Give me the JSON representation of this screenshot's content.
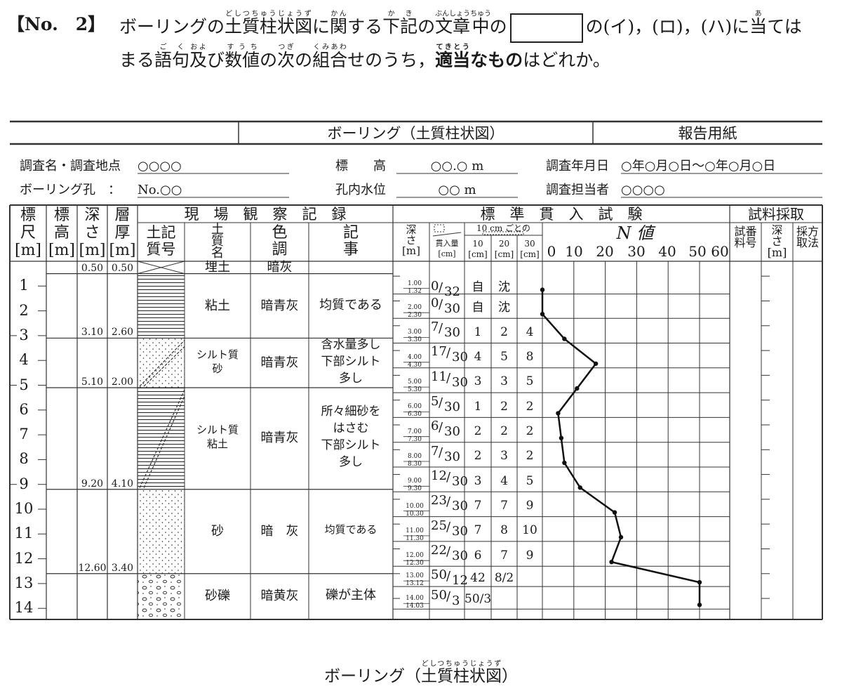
{
  "question": {
    "number": "【No.　2】",
    "line1": [
      {
        "t": "ボーリングの"
      },
      {
        "t": "土質柱状図",
        "r": "どしつちゅうじょうず"
      },
      {
        "t": "に"
      },
      {
        "t": "関",
        "r": "かん"
      },
      {
        "t": "する"
      },
      {
        "t": "下記",
        "r": "かき"
      },
      {
        "t": "の"
      },
      {
        "t": "文章",
        "r": "ぶんしょう"
      },
      {
        "t": "中",
        "r": "ちゅう"
      },
      {
        "t": "の"
      },
      {
        "box": true
      },
      {
        "t": "の(イ)，(ロ)，(ハ)に"
      },
      {
        "t": "当",
        "r": "あ"
      },
      {
        "t": "ては"
      }
    ],
    "line2": [
      {
        "t": "まる"
      },
      {
        "t": "語句",
        "r": "ごく"
      },
      {
        "t": "及",
        "r": "およ"
      },
      {
        "t": "び"
      },
      {
        "t": "数値",
        "r": "すうち"
      },
      {
        "t": "の"
      },
      {
        "t": "次",
        "r": "つぎ"
      },
      {
        "t": "の"
      },
      {
        "t": "組合",
        "r": "くみあわ"
      },
      {
        "t": "せのうち，"
      },
      {
        "t": "適当",
        "r": "てきとう",
        "b": true
      },
      {
        "t": "なもの",
        "b": true
      },
      {
        "t": "はどれか。"
      }
    ]
  },
  "form": {
    "title": "ボーリング（土質柱状図）",
    "report": "報告用紙",
    "info": {
      "survey_label": "調査名・調査地点",
      "survey_value": "○○○○",
      "hole_label": "ボーリング孔　：",
      "hole_value": "No.○○",
      "elev_label": "標　　高",
      "elev_value": "○○.○ m",
      "water_label": "孔内水位",
      "water_value": "○○ m",
      "date_label": "調査年月日",
      "date_value": "○年○月○日～○年○月○日",
      "staff_label": "調査担当者",
      "staff_value": "○○○○"
    },
    "headers": {
      "scale": [
        "標",
        "尺",
        "[m]"
      ],
      "elevation": [
        "標",
        "高",
        "[m]"
      ],
      "depth": [
        "深",
        "さ",
        "[m]"
      ],
      "thickness": [
        "層",
        "厚",
        "[m]"
      ],
      "field_group": "現　場　観　察　記　録",
      "symbol": [
        "土記",
        "質号"
      ],
      "soil_name": [
        "土",
        "質",
        "名"
      ],
      "color": [
        "色",
        "調"
      ],
      "notes": [
        "記",
        "事"
      ],
      "spt_group": "標　準　貫　入　試　験",
      "spt_depth": [
        "深",
        "さ",
        "[m]"
      ],
      "penetration": [
        "貫入量",
        "[cm]"
      ],
      "per10": "10 cm ごとの",
      "per10_cols": [
        [
          "10",
          "[cm]"
        ],
        [
          "20",
          "[cm]"
        ],
        [
          "30",
          "[cm]"
        ]
      ],
      "n_value": "N 値",
      "n_ticks": [
        "0",
        "10",
        "20",
        "30",
        "40",
        "50",
        "60"
      ],
      "sample_group": "試料採取",
      "sample_no": [
        "試番",
        "料号"
      ],
      "sample_depth": [
        "深",
        "さ",
        "[m]"
      ],
      "sample_method": [
        "採方",
        "取法"
      ]
    },
    "scale_marks": [
      "1",
      "2",
      "3",
      "4",
      "5",
      "6",
      "7",
      "8",
      "9",
      "10",
      "11",
      "12",
      "13",
      "14"
    ],
    "layers": [
      {
        "top": 0,
        "bottom": 0.5,
        "depth": "0.50",
        "thickness": "0.50",
        "name": [
          "埋土"
        ],
        "color": "暗灰",
        "note": [],
        "pattern": "fill"
      },
      {
        "top": 0.5,
        "bottom": 3.1,
        "depth": "3.10",
        "thickness": "2.60",
        "name": [
          "粘土"
        ],
        "color": "暗青灰",
        "note": [
          "均質である"
        ],
        "pattern": "clay"
      },
      {
        "top": 3.1,
        "bottom": 5.1,
        "depth": "5.10",
        "thickness": "2.00",
        "name": [
          "シルト質",
          "砂"
        ],
        "color": "暗青灰",
        "note": [
          "含水量多し",
          "下部シルト",
          "多し"
        ],
        "pattern": "silty-sand"
      },
      {
        "top": 5.1,
        "bottom": 9.2,
        "depth": "9.20",
        "thickness": "4.10",
        "name": [
          "シルト質",
          "粘土"
        ],
        "color": "暗青灰",
        "note": [
          "所々細砂を",
          "はさむ",
          "下部シルト",
          "多し"
        ],
        "pattern": "silty-clay"
      },
      {
        "top": 9.2,
        "bottom": 12.6,
        "depth": "12.60",
        "thickness": "3.40",
        "name": [
          "砂"
        ],
        "color": "暗　灰",
        "note": [
          "均質である"
        ],
        "pattern": "sand"
      },
      {
        "top": 12.6,
        "bottom": 14.5,
        "depth": "",
        "thickness": "",
        "name": [
          "砂礫"
        ],
        "color": "暗黄灰",
        "note": [
          "礫が主体"
        ],
        "pattern": "gravel"
      }
    ],
    "spt": [
      {
        "start": "1.00",
        "end": "1.32",
        "blows": "0",
        "pen": "32",
        "b10": "自",
        "b20": "沈",
        "b30": "",
        "n": 0
      },
      {
        "start": "2.00",
        "end": "2.30",
        "blows": "0",
        "pen": "30",
        "b10": "自",
        "b20": "沈",
        "b30": "",
        "n": 0
      },
      {
        "start": "3.00",
        "end": "3.30",
        "blows": "7",
        "pen": "30",
        "b10": "1",
        "b20": "2",
        "b30": "4",
        "n": 7
      },
      {
        "start": "4.00",
        "end": "4.30",
        "blows": "17",
        "pen": "30",
        "b10": "4",
        "b20": "5",
        "b30": "8",
        "n": 17
      },
      {
        "start": "5.00",
        "end": "5.30",
        "blows": "11",
        "pen": "30",
        "b10": "3",
        "b20": "3",
        "b30": "5",
        "n": 11
      },
      {
        "start": "6.00",
        "end": "6.30",
        "blows": "5",
        "pen": "30",
        "b10": "1",
        "b20": "2",
        "b30": "2",
        "n": 5
      },
      {
        "start": "7.00",
        "end": "7.30",
        "blows": "6",
        "pen": "30",
        "b10": "2",
        "b20": "2",
        "b30": "2",
        "n": 6
      },
      {
        "start": "8.00",
        "end": "8.30",
        "blows": "7",
        "pen": "30",
        "b10": "2",
        "b20": "3",
        "b30": "2",
        "n": 7
      },
      {
        "start": "9.00",
        "end": "9.30",
        "blows": "12",
        "pen": "30",
        "b10": "3",
        "b20": "4",
        "b30": "5",
        "n": 12
      },
      {
        "start": "10.00",
        "end": "10.30",
        "blows": "23",
        "pen": "30",
        "b10": "7",
        "b20": "7",
        "b30": "9",
        "n": 23
      },
      {
        "start": "11.00",
        "end": "11.30",
        "blows": "25",
        "pen": "30",
        "b10": "7",
        "b20": "8",
        "b30": "10",
        "n": 25
      },
      {
        "start": "12.00",
        "end": "12.30",
        "blows": "22",
        "pen": "30",
        "b10": "6",
        "b20": "7",
        "b30": "9",
        "n": 22
      },
      {
        "start": "13.00",
        "end": "13.12",
        "blows": "50",
        "pen": "12",
        "b10": "42",
        "b20": "8/2",
        "b30": "",
        "n": 50
      },
      {
        "start": "14.00",
        "end": "14.03",
        "blows": "50",
        "pen": "3",
        "b10": "50/3",
        "b20": "",
        "b30": "",
        "n": 50
      }
    ]
  },
  "caption": {
    "pre": "ボーリング（",
    "rb": "土質柱状図",
    "rt": "どしつちゅうじょうず",
    "post": "）"
  }
}
